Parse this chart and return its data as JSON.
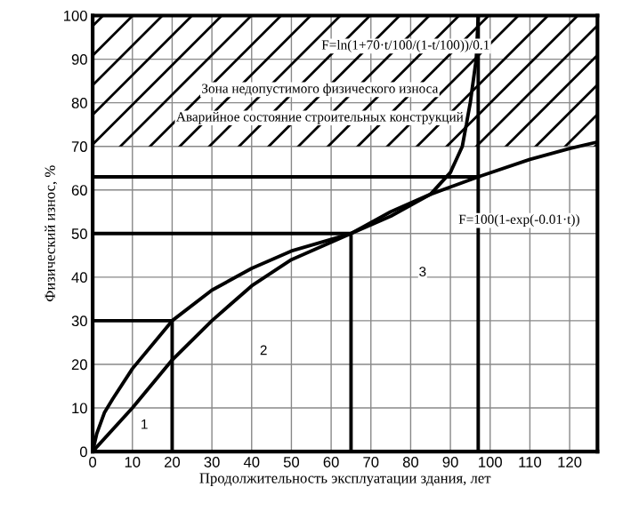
{
  "chart_data": {
    "type": "line",
    "xlabel": "Продолжительность эксплуатации здания, лет",
    "ylabel": "Физический износ, %",
    "series": [
      {
        "color": "#000000",
        "x": [
          0,
          1,
          3,
          5,
          10,
          20,
          30,
          40,
          50,
          65,
          75,
          85,
          88,
          90,
          93,
          95,
          96.5,
          97
        ],
        "values": [
          0,
          4,
          9,
          12,
          19,
          30,
          37,
          42,
          46,
          50,
          54,
          59,
          62,
          64,
          70,
          80,
          90,
          100
        ]
      },
      {
        "color": "#000000",
        "x": [
          0,
          10,
          20,
          30,
          40,
          50,
          65,
          75,
          85,
          97,
          110,
          120,
          127
        ],
        "values": [
          0,
          10,
          21,
          30,
          38,
          44,
          50,
          55,
          59,
          63,
          67,
          69.5,
          71
        ]
      },
      {
        "color": "#000000",
        "x": [
          0,
          20,
          20
        ],
        "values": [
          30,
          30,
          0
        ]
      },
      {
        "color": "#000000",
        "x": [
          0,
          65,
          65
        ],
        "values": [
          50,
          50,
          0
        ]
      },
      {
        "color": "#000000",
        "x": [
          0,
          97
        ],
        "values": [
          63,
          63
        ]
      },
      {
        "color": "#000000",
        "x": [
          97,
          97
        ],
        "values": [
          0,
          100
        ]
      }
    ],
    "bands": [
      {
        "axis": "y",
        "from": 70,
        "to": 100,
        "color": "#000000"
      }
    ],
    "annotations": [
      "F=ln(1+70·t/100/(1-t/100))/0.1",
      "F=100(1-exp(-0.01·t))",
      "Зона недопустимого физического износа",
      "Аварийное состояние строительных конструкций",
      {
        "text": "1",
        "x": 13,
        "y": 6
      },
      {
        "text": "2",
        "x": 43,
        "y": 23
      },
      {
        "text": "3",
        "x": 83,
        "y": 41
      }
    ],
    "xlim": [
      0,
      127
    ],
    "ylim": [
      0,
      100
    ],
    "xticks": [
      0,
      10,
      20,
      30,
      40,
      50,
      60,
      70,
      80,
      90,
      100,
      110,
      120
    ],
    "yticks": [
      0,
      10,
      20,
      30,
      40,
      50,
      60,
      70,
      80,
      90,
      100
    ],
    "grid": true,
    "legend": false
  }
}
